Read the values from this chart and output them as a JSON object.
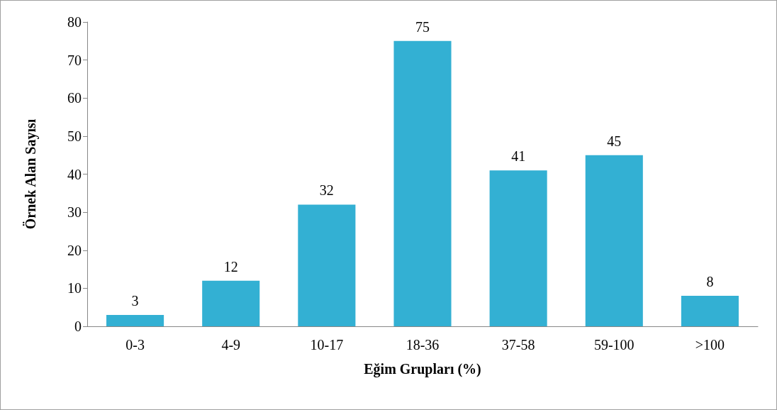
{
  "chart_data": {
    "type": "bar",
    "xlabel": "Eğim Grupları (%)",
    "ylabel": "Örnek Alan Sayısı",
    "categories": [
      "0-3",
      "4-9",
      "10-17",
      "18-36",
      "37-58",
      "59-100",
      ">100"
    ],
    "values": [
      3,
      12,
      32,
      75,
      41,
      45,
      8
    ],
    "color": "#33b0d3",
    "ylim": [
      0,
      80
    ],
    "yticks": [
      0,
      10,
      20,
      30,
      40,
      50,
      60,
      70,
      80
    ],
    "grid": false,
    "data_labels": true
  }
}
